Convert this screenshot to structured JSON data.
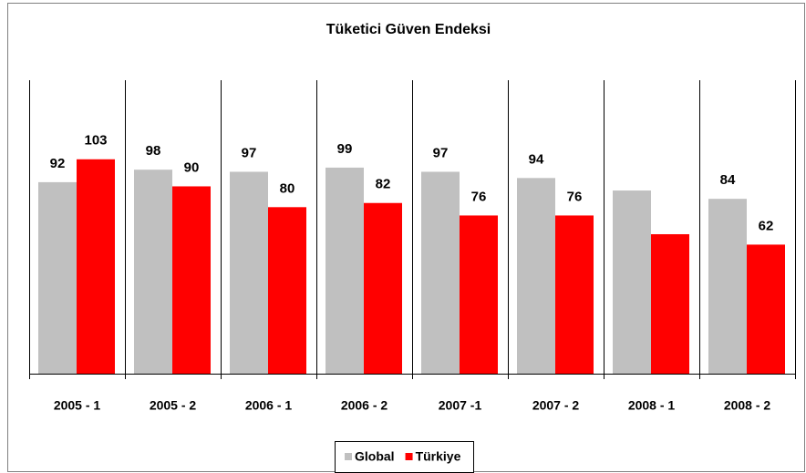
{
  "chart_data": {
    "type": "bar",
    "title": "Tüketici Güven Endeksi",
    "categories": [
      "2005 - 1",
      "2005 - 2",
      "2006 - 1",
      "2006 - 2",
      "2007 -1",
      "2007 - 2",
      "2008 - 1",
      "2008 - 2"
    ],
    "series": [
      {
        "name": "Global",
        "color": "#c0c0c0",
        "values": [
          92,
          98,
          97,
          99,
          97,
          94,
          88,
          84
        ],
        "value_labels": [
          "92",
          "98",
          "97",
          "99",
          "97",
          "94",
          null,
          "84"
        ]
      },
      {
        "name": "Türkiye",
        "color": "#ff0000",
        "values": [
          103,
          90,
          80,
          82,
          76,
          76,
          67,
          62
        ],
        "value_labels": [
          "103",
          "90",
          "80",
          "82",
          "76",
          "76",
          null,
          "62"
        ]
      }
    ],
    "ylim": [
      0,
      141
    ],
    "legend": "bottom"
  }
}
